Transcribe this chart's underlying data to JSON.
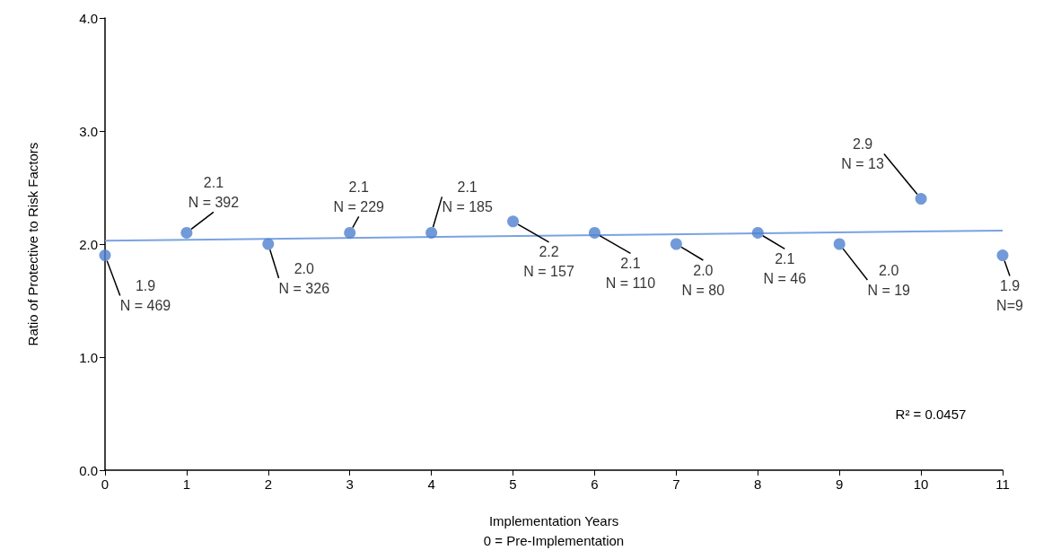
{
  "chart_data": {
    "type": "scatter",
    "xlabel": "Implementation Years\n0 = Pre-Implementation",
    "ylabel": "Ratio of Protective to Risk Factors",
    "x": [
      0,
      1,
      2,
      3,
      4,
      5,
      6,
      7,
      8,
      9,
      10,
      11
    ],
    "series": [
      {
        "color": "#4f81d0",
        "values": [
          1.9,
          2.1,
          2.0,
          2.1,
          2.1,
          2.2,
          2.1,
          2.0,
          2.1,
          2.0,
          2.4,
          1.9
        ],
        "value_labels": [
          "1.9\nN = 469",
          "2.1\nN = 392",
          "2.0\nN = 326",
          "2.1\nN = 229",
          "2.1\nN = 185",
          "2.2\nN = 157",
          "2.1\nN = 110",
          "2.0\nN = 80",
          "2.1\nN = 46",
          "2.0\nN = 19",
          "2.9\nN = 13",
          "1.9\nN=9"
        ]
      },
      {
        "type": "line",
        "color": "#7aa3e0",
        "x": [
          0,
          11
        ],
        "values": [
          2.03,
          2.12
        ],
        "marker": "none"
      }
    ],
    "xlim": [
      0,
      11
    ],
    "xticks": [
      0,
      1,
      2,
      3,
      4,
      5,
      6,
      7,
      8,
      9,
      10,
      11
    ],
    "ylim": [
      0,
      4
    ],
    "yticks": [
      {
        "value": 0,
        "label": "0.0"
      },
      {
        "value": 1,
        "label": "1.0"
      },
      {
        "value": 2,
        "label": "2.0"
      },
      {
        "value": 3,
        "label": "3.0"
      },
      {
        "value": 4,
        "label": "4.0"
      }
    ],
    "grid": false,
    "marker": "circle",
    "annotations": [
      "R² = 0.0457"
    ]
  }
}
